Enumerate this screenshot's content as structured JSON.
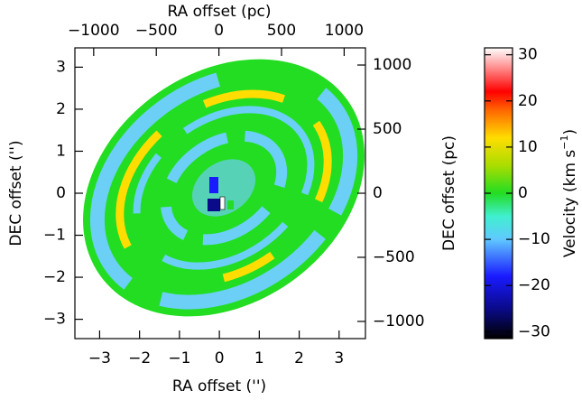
{
  "chart_data": {
    "type": "image-map",
    "x_label": "RA offset ('')",
    "x2_label": "RA offset (pc)",
    "y_label": "DEC offset ('')",
    "y2_label": "DEC offset (pc)",
    "colorbar_label": "Velocity (km s",
    "colorbar_label_sup": "−1",
    "colorbar_label_end": ")",
    "xlim": [
      -3.62,
      3.66
    ],
    "xticks": [
      {
        "value": -3,
        "label": "−3"
      },
      {
        "value": -2,
        "label": "−2"
      },
      {
        "value": -1,
        "label": "−1"
      },
      0,
      1,
      2,
      3
    ],
    "x2lim": [
      -1150,
      1170
    ],
    "x2ticks": [
      {
        "value": -1000,
        "label": "−1000"
      },
      {
        "value": -500,
        "label": "−500"
      },
      0,
      500,
      1000
    ],
    "ylim": [
      -3.46,
      3.46
    ],
    "yticks": [
      {
        "value": -3,
        "label": "−3"
      },
      {
        "value": -2,
        "label": "−2"
      },
      {
        "value": -1,
        "label": "−1"
      },
      0,
      1,
      2,
      3
    ],
    "y2lim": [
      -1134,
      1134
    ],
    "y2ticks": [
      {
        "value": -1000,
        "label": "−1000"
      },
      {
        "value": -500,
        "label": "−500"
      },
      0,
      500,
      1000
    ],
    "clim": [
      -31.5,
      31.5
    ],
    "cticks": [
      {
        "value": -30,
        "label": "−30"
      },
      {
        "value": -20,
        "label": "−20"
      },
      {
        "value": -10,
        "label": "−10"
      },
      0,
      10,
      20,
      30
    ],
    "colormap": [
      {
        "value": -31.5,
        "color": "#000000"
      },
      {
        "value": -25,
        "color": "#0a0a8a"
      },
      {
        "value": -18,
        "color": "#1a1aff"
      },
      {
        "value": -10,
        "color": "#60c8ff"
      },
      {
        "value": -5,
        "color": "#40f0d0"
      },
      {
        "value": 0,
        "color": "#22dd22"
      },
      {
        "value": 6,
        "color": "#aadd00"
      },
      {
        "value": 12,
        "color": "#ffdd00"
      },
      {
        "value": 18,
        "color": "#ff6600"
      },
      {
        "value": 22,
        "color": "#ff0000"
      },
      {
        "value": 27,
        "color": "#ff8888"
      },
      {
        "value": 31.5,
        "color": "#ffffff"
      }
    ]
  }
}
